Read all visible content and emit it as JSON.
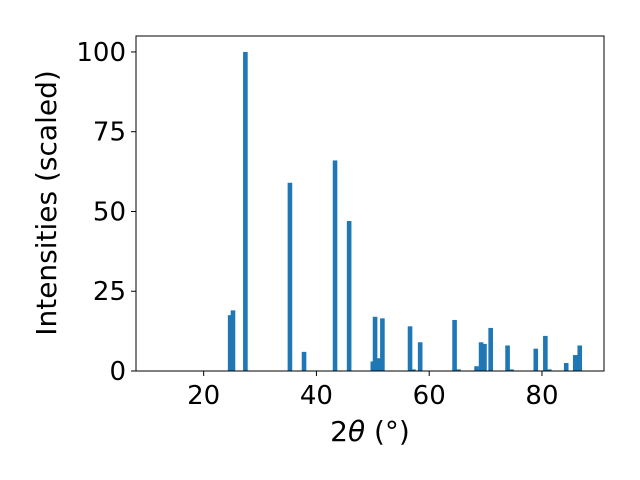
{
  "chart_data": {
    "type": "bar",
    "xlabel": "2θ (°)",
    "xlabel_theta": "θ",
    "xlabel_prefix": "2",
    "xlabel_suffix": " (°)",
    "ylabel": "Intensities (scaled)",
    "xlim": [
      8,
      91
    ],
    "ylim": [
      0,
      105
    ],
    "xticks": [
      20,
      40,
      60,
      80
    ],
    "yticks": [
      0,
      25,
      50,
      75,
      100
    ],
    "bar_color": "#1f77b4",
    "grid": false,
    "points": [
      {
        "x": 24.7,
        "y": 17.5
      },
      {
        "x": 25.2,
        "y": 19.0
      },
      {
        "x": 27.4,
        "y": 100
      },
      {
        "x": 35.3,
        "y": 59.0
      },
      {
        "x": 37.8,
        "y": 6.0
      },
      {
        "x": 43.3,
        "y": 66.0
      },
      {
        "x": 45.8,
        "y": 47.0
      },
      {
        "x": 50.0,
        "y": 3.0
      },
      {
        "x": 50.4,
        "y": 17.0
      },
      {
        "x": 51.1,
        "y": 4.0
      },
      {
        "x": 51.7,
        "y": 16.5
      },
      {
        "x": 56.6,
        "y": 14.0
      },
      {
        "x": 57.2,
        "y": 0.5
      },
      {
        "x": 58.4,
        "y": 9.0
      },
      {
        "x": 64.5,
        "y": 16.0
      },
      {
        "x": 65.2,
        "y": 0.5
      },
      {
        "x": 68.4,
        "y": 1.5
      },
      {
        "x": 69.2,
        "y": 9.0
      },
      {
        "x": 69.8,
        "y": 8.5
      },
      {
        "x": 70.9,
        "y": 13.5
      },
      {
        "x": 73.9,
        "y": 8.0
      },
      {
        "x": 74.6,
        "y": 0.5
      },
      {
        "x": 78.9,
        "y": 7.0
      },
      {
        "x": 80.6,
        "y": 11.0
      },
      {
        "x": 81.3,
        "y": 0.5
      },
      {
        "x": 84.3,
        "y": 2.5
      },
      {
        "x": 85.9,
        "y": 5.0
      },
      {
        "x": 86.7,
        "y": 8.0
      }
    ]
  }
}
